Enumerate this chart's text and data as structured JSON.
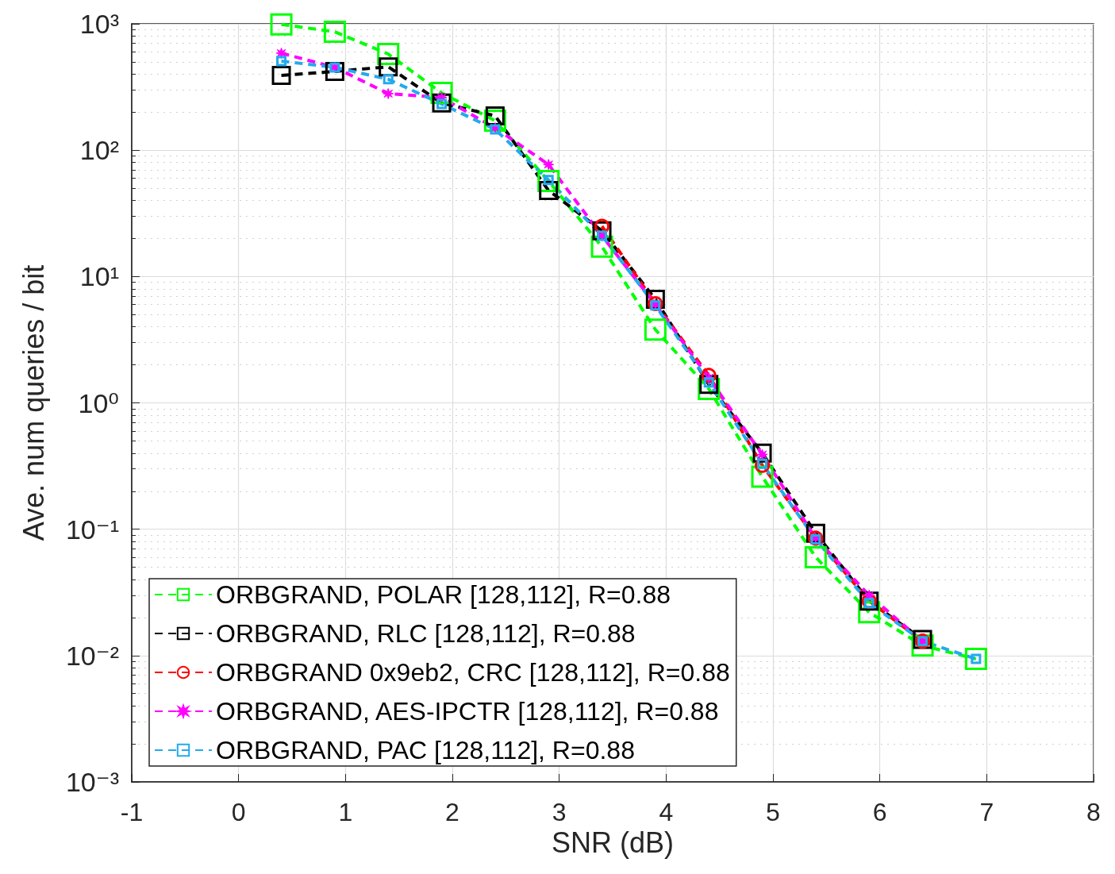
{
  "chart_data": {
    "type": "line",
    "xlabel": "SNR (dB)",
    "ylabel": "Ave. num queries / bit",
    "log": "y",
    "grid": true,
    "legend": "bottom left",
    "line_style": "dashed",
    "xlim": [
      -1,
      8
    ],
    "xticks": [
      -1,
      0,
      1,
      2,
      3,
      4,
      5,
      6,
      7,
      8
    ],
    "ylim": [
      0.001,
      1000
    ],
    "yticks": [
      {
        "value": 0.001,
        "label": "10⁻³"
      },
      {
        "value": 0.01,
        "label": "10⁻²"
      },
      {
        "value": 0.1,
        "label": "10⁻¹"
      },
      {
        "value": 1,
        "label": "10⁰"
      },
      {
        "value": 10,
        "label": "10¹"
      },
      {
        "value": 100,
        "label": "10²"
      },
      {
        "value": 1000,
        "label": "10³"
      }
    ],
    "series": [
      {
        "name": "ORBGRAND, POLAR [128,112], R=0.88",
        "color": "#00ff00",
        "marker": "square",
        "x": [
          0.4,
          0.9,
          1.4,
          1.9,
          2.4,
          2.9,
          3.4,
          3.9,
          4.4,
          4.9,
          5.4,
          5.9,
          6.4,
          6.9
        ],
        "values": [
          990,
          865,
          577,
          284,
          171,
          57,
          17.2,
          3.8,
          1.29,
          0.26,
          0.06,
          0.022,
          0.012,
          0.0094
        ]
      },
      {
        "name": "ORBGRAND, RLC [128,112], R=0.88",
        "color": "#000000",
        "marker": "square",
        "x": [
          0.4,
          0.9,
          1.4,
          1.9,
          2.4,
          2.9,
          3.4,
          3.9,
          4.4,
          4.9,
          5.4,
          5.9,
          6.4
        ],
        "values": [
          391,
          420,
          457,
          236,
          187,
          48,
          23,
          6.6,
          1.4,
          0.4,
          0.093,
          0.027,
          0.0134
        ]
      },
      {
        "name": "ORBGRAND 0x9eb2, CRC [128,112], R=0.88",
        "color": "#ff0000",
        "marker": "circle",
        "x": [
          3.4,
          3.9,
          4.4,
          4.9,
          5.4,
          5.9,
          6.4
        ],
        "values": [
          25,
          6.1,
          1.65,
          0.32,
          0.085,
          0.027,
          0.013
        ]
      },
      {
        "name": "ORBGRAND, AES-IPCTR [128,112], R=0.88",
        "color": "#ff00ff",
        "marker": "star",
        "x": [
          0.4,
          0.9,
          1.4,
          1.9,
          2.4,
          2.9,
          3.4,
          3.9,
          4.4,
          4.9,
          5.4,
          5.9,
          6.4
        ],
        "values": [
          586,
          452,
          280,
          261,
          150,
          77,
          21,
          6.0,
          1.58,
          0.39,
          0.085,
          0.03,
          0.013
        ]
      },
      {
        "name": "ORBGRAND, PAC [128,112], R=0.88",
        "color": "#22aaee",
        "marker": "square",
        "x": [
          0.4,
          0.9,
          1.4,
          1.9,
          2.4,
          2.9,
          3.4,
          3.9,
          4.4,
          4.9,
          5.4,
          5.9,
          6.4,
          6.9
        ],
        "values": [
          507,
          452,
          364,
          232,
          146,
          58,
          21,
          5.9,
          1.45,
          0.33,
          0.083,
          0.026,
          0.013,
          0.0094
        ]
      }
    ]
  }
}
